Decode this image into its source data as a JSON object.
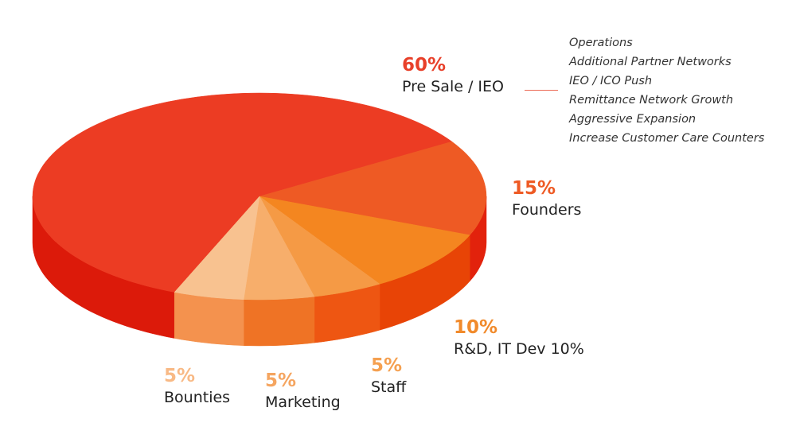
{
  "chart_data": {
    "type": "pie",
    "style": "3d",
    "slices": [
      {
        "label": "Pre Sale / IEO",
        "value": 60,
        "pct_label": "60%",
        "color": "#ec3c23",
        "side_color": "#dc1a0a",
        "label_color": "#e8402a"
      },
      {
        "label": "Founders",
        "value": 15,
        "pct_label": "15%",
        "color": "#ee5a24",
        "side_color": "#e2220c",
        "label_color": "#ee5a24"
      },
      {
        "label": "R&D, IT Dev 10%",
        "value": 10,
        "pct_label": "10%",
        "color": "#f48620",
        "side_color": "#e84406",
        "label_color": "#f18a2b"
      },
      {
        "label": "Staff",
        "value": 5,
        "pct_label": "5%",
        "color": "#f59a45",
        "side_color": "#ee5612",
        "label_color": "#f5a050"
      },
      {
        "label": "Marketing",
        "value": 5,
        "pct_label": "5%",
        "color": "#f7ae6b",
        "side_color": "#ef7325",
        "label_color": "#f5a560"
      },
      {
        "label": "Bounties",
        "value": 5,
        "pct_label": "5%",
        "color": "#f8c290",
        "side_color": "#f4924e",
        "label_color": "#f8b985"
      }
    ],
    "annotation": {
      "for": "Pre Sale / IEO",
      "items": [
        "Operations",
        "Additional Partner Networks",
        "IEO / ICO Push",
        "Remittance Network Growth",
        "Aggressive Expansion",
        "Increase Customer Care Counters"
      ]
    }
  }
}
